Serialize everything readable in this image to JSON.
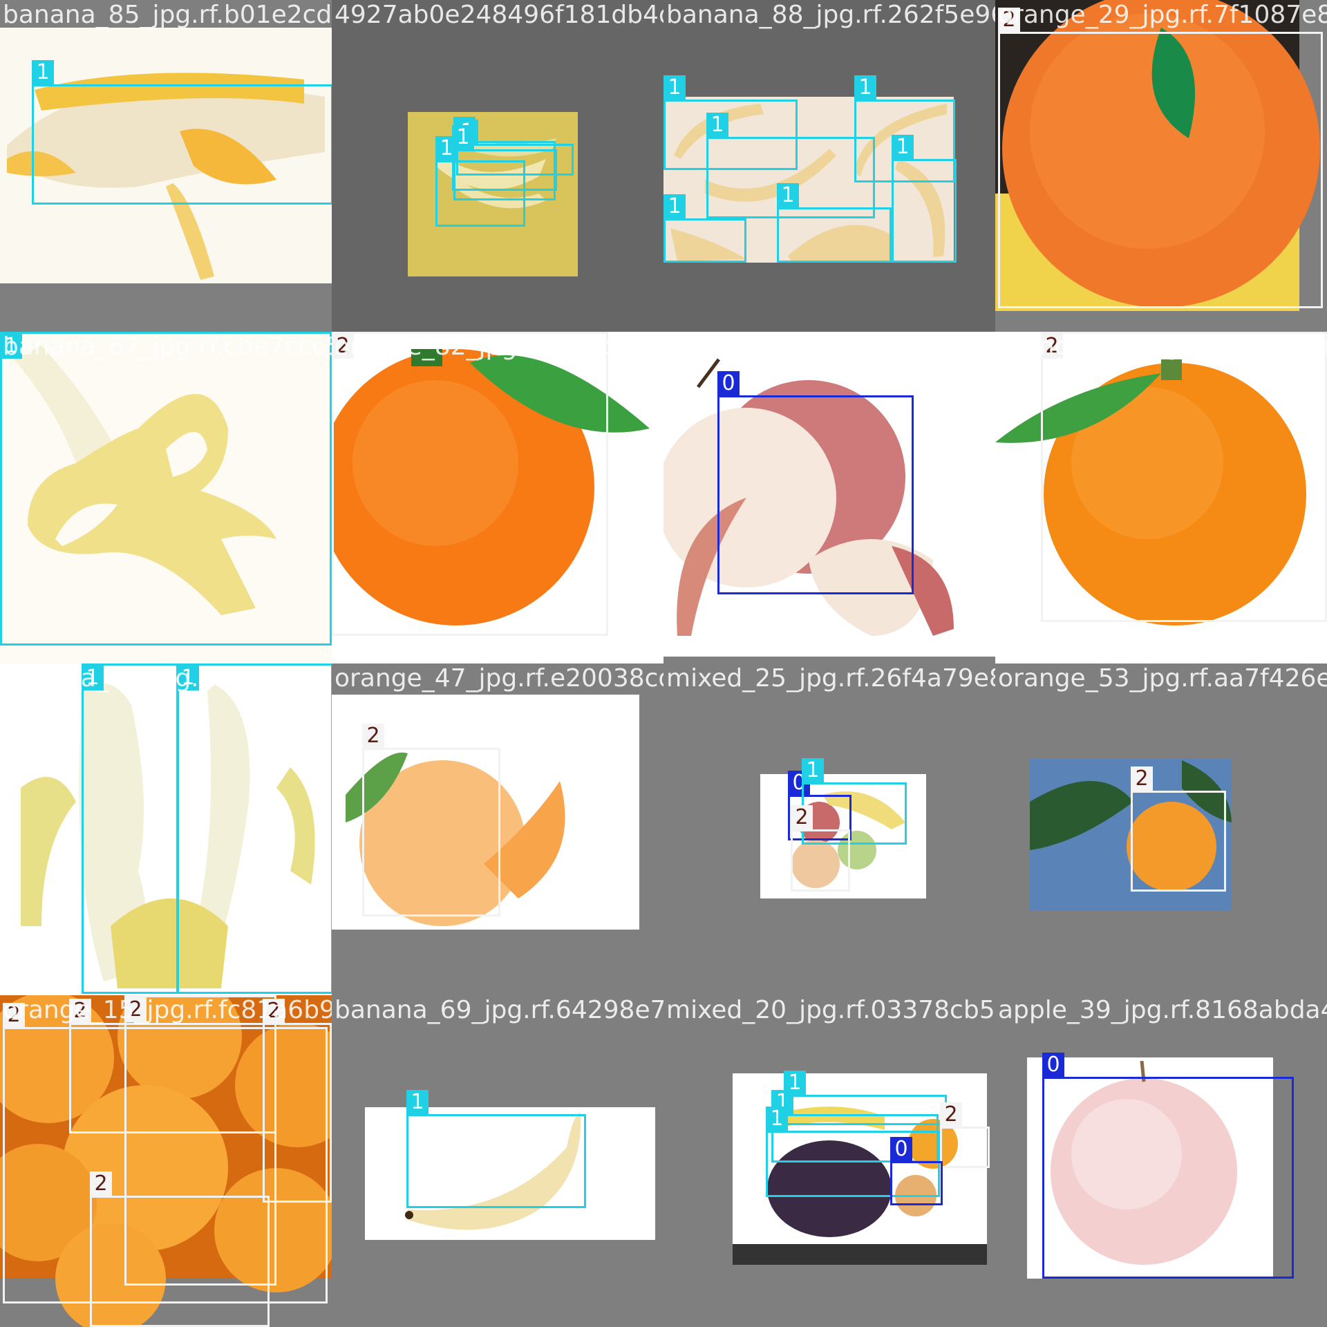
{
  "colors": {
    "class_0": "#1a2ad6",
    "class_1": "#20d0e4",
    "class_2": "#f2f2f2",
    "background": "#7f7f7f"
  },
  "tiles": [
    {
      "filename": "banana_85_jpg.rf.b01e2cd1e",
      "scene": "peeled-banana",
      "boxes": [
        {
          "cls": "1"
        }
      ]
    },
    {
      "filename": "4927ab0e248496f181db4d683",
      "scene": "banana-bunch-small",
      "boxes": [
        {
          "cls": "1"
        },
        {
          "cls": "1"
        },
        {
          "cls": "1"
        },
        {
          "cls": "1"
        }
      ]
    },
    {
      "filename": "banana_88_jpg.rf.262f5e9684",
      "scene": "five-bananas",
      "boxes": [
        {
          "cls": "1"
        },
        {
          "cls": "1"
        },
        {
          "cls": "1"
        },
        {
          "cls": "1"
        },
        {
          "cls": "1"
        },
        {
          "cls": "1"
        }
      ]
    },
    {
      "filename": "orange_29_jpg.rf.7f1087e86f",
      "scene": "orange-leaf-closeup",
      "boxes": [
        {
          "cls": "2"
        }
      ]
    },
    {
      "filename": "banana_67_jpg.rf.cbe7ccc59a",
      "scene": "peeled-banana-large",
      "boxes": [
        {
          "cls": "1"
        }
      ]
    },
    {
      "filename": "orange_82_jpg.rf.537d8b7f51a",
      "scene": "orange-with-leaf",
      "boxes": [
        {
          "cls": "2"
        }
      ]
    },
    {
      "filename": "apple_60_jpg.rf.9e515d7eac",
      "scene": "apple-halves",
      "boxes": [
        {
          "cls": "0"
        }
      ]
    },
    {
      "filename": "orange_18_jpg.rf.e418bbaf2",
      "scene": "orange-shutterstock",
      "boxes": [
        {
          "cls": "2"
        }
      ]
    },
    {
      "filename": "banana_78_jpg.rf.01c9e49b",
      "scene": "peeled-bananas-pair",
      "boxes": [
        {
          "cls": "1"
        },
        {
          "cls": "1"
        }
      ]
    },
    {
      "filename": "orange_47_jpg.rf.e20038cd9",
      "scene": "orange-sliced",
      "boxes": [
        {
          "cls": "2"
        }
      ]
    },
    {
      "filename": "mixed_25_jpg.rf.26f4a79e85",
      "scene": "mixed-small",
      "boxes": [
        {
          "cls": "0"
        },
        {
          "cls": "1"
        },
        {
          "cls": "2"
        }
      ]
    },
    {
      "filename": "orange_53_jpg.rf.aa7f426e6",
      "scene": "orange-on-tree",
      "boxes": [
        {
          "cls": "2"
        }
      ]
    },
    {
      "filename": "orange_15_jpg.rf.fc81a6b91",
      "scene": "many-oranges",
      "boxes": [
        {
          "cls": "2"
        },
        {
          "cls": "2"
        },
        {
          "cls": "2"
        },
        {
          "cls": "2"
        },
        {
          "cls": "2"
        }
      ]
    },
    {
      "filename": "banana_69_jpg.rf.64298e7b2",
      "scene": "single-banana",
      "boxes": [
        {
          "cls": "1"
        }
      ]
    },
    {
      "filename": "mixed_20_jpg.rf.03378cb5ee",
      "scene": "mixed-grapes",
      "boxes": [
        {
          "cls": "1"
        },
        {
          "cls": "1"
        },
        {
          "cls": "1"
        },
        {
          "cls": "2"
        },
        {
          "cls": "0"
        }
      ]
    },
    {
      "filename": "apple_39_jpg.rf.8168abda4e9",
      "scene": "single-apple",
      "boxes": [
        {
          "cls": "0"
        }
      ]
    }
  ]
}
